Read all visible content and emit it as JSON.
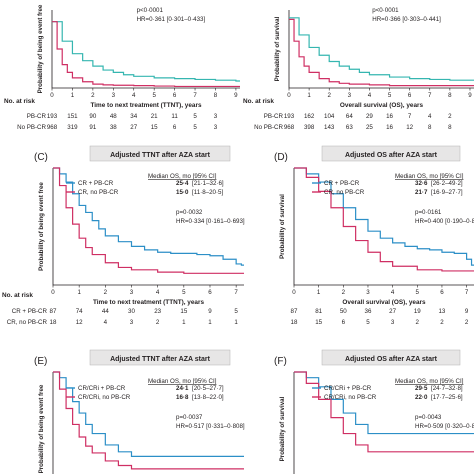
{
  "colors": {
    "blue": "#2c8fc7",
    "teal": "#35b6b0",
    "red": "#cf2f63",
    "ink": "#231f20",
    "header_bg": "#e7e6e6"
  },
  "panels": [
    {
      "id": "A",
      "annotation": [
        "p<0·0001",
        "HR=0·361 [0·301–0·433]"
      ],
      "risk": {
        "title": "No. at risk",
        "rows": [
          {
            "label": "PB-CR",
            "values": [
              "193",
              "151",
              "90",
              "48",
              "34",
              "21",
              "11",
              "5",
              "3"
            ]
          },
          {
            "label": "No PB-CR",
            "values": [
              "968",
              "319",
              "91",
              "38",
              "27",
              "15",
              "6",
              "5",
              "3"
            ]
          }
        ]
      }
    },
    {
      "id": "B",
      "annotation": [
        "p<0·0001",
        "HR=0·366 [0·303–0·441]"
      ],
      "risk": {
        "title": "No. at risk",
        "rows": [
          {
            "label": "PB-CR",
            "values": [
              "193",
              "162",
              "104",
              "64",
              "29",
              "16",
              "7",
              "4",
              "2"
            ]
          },
          {
            "label": "No PB-CR",
            "values": [
              "968",
              "398",
              "143",
              "63",
              "25",
              "16",
              "12",
              "8",
              "8"
            ]
          }
        ]
      }
    },
    {
      "id": "C",
      "letter": "(C)",
      "header": "Adjusted TTNT after AZA start",
      "median_header": "Median OS, mo [95% CI]",
      "legend": [
        {
          "label": "CR + PB-CR",
          "value": "25·4",
          "ci": "[21·1–32·6]",
          "color": "#2c8fc7"
        },
        {
          "label": "CR, no PB-CR",
          "value": "15·0",
          "ci": "[11·8–20·5]",
          "color": "#cf2f63"
        }
      ],
      "annotation": [
        "p=0·0032",
        "HR=0·334 [0·161–0·693]"
      ],
      "risk": {
        "title": "No. at risk",
        "rows": [
          {
            "label": "CR + PB-CR",
            "values": [
              "87",
              "74",
              "44",
              "30",
              "23",
              "15",
              "9",
              "5"
            ]
          },
          {
            "label": "CR, no PB-CR",
            "values": [
              "18",
              "12",
              "4",
              "3",
              "2",
              "1",
              "1",
              "1"
            ]
          }
        ]
      }
    },
    {
      "id": "D",
      "letter": "(D)",
      "header": "Adjusted OS after AZA start",
      "median_header": "Median OS, mo [95% CI]",
      "legend": [
        {
          "label": "CR + PB-CR",
          "value": "32·6",
          "ci": "[26·2–49·2]",
          "color": "#2c8fc7"
        },
        {
          "label": "CR, no PB-CR",
          "value": "21·7",
          "ci": "[16·9–27·7]",
          "color": "#cf2f63"
        }
      ],
      "annotation": [
        "p=0·0161",
        "HR=0·400 [0·190–0·844]"
      ],
      "risk": {
        "title": "",
        "rows": [
          {
            "label": "",
            "values": [
              "87",
              "81",
              "50",
              "36",
              "27",
              "19",
              "13",
              "9"
            ]
          },
          {
            "label": "",
            "values": [
              "18",
              "15",
              "6",
              "5",
              "3",
              "2",
              "2",
              "2"
            ]
          }
        ]
      }
    },
    {
      "id": "E",
      "letter": "(E)",
      "header": "Adjusted TTNT after AZA start",
      "median_header": "Median OS, mo [95% CI]",
      "legend": [
        {
          "label": "CR/CRi + PB-CR",
          "value": "24·1",
          "ci": "[20·5–27·7]",
          "color": "#2c8fc7"
        },
        {
          "label": "CR/CRi, no PB-CR",
          "value": "16·8",
          "ci": "[13·8–22·0]",
          "color": "#cf2f63"
        }
      ],
      "annotation": [
        "p=0·0037",
        "HR=0·517 [0·331–0·808]"
      ]
    },
    {
      "id": "F",
      "letter": "(F)",
      "header": "Adjusted OS after AZA start",
      "median_header": "Median OS, mo [95% CI]",
      "legend": [
        {
          "label": "CR/CRi + PB-CR",
          "value": "29·5",
          "ci": "[24·7–32·8]",
          "color": "#2c8fc7"
        },
        {
          "label": "CR/CRi, no PB-CR",
          "value": "22·0",
          "ci": "[17·7–25·6]",
          "color": "#cf2f63"
        }
      ],
      "annotation": [
        "p=0·0043",
        "HR=0·509 [0·320–0·810]"
      ]
    }
  ],
  "chart_data": [
    {
      "id": "A",
      "type": "line",
      "xlabel": "Time to next treatment (TTNT), years",
      "ylabel": "Probability of being event free",
      "x_ticks": [
        0,
        1,
        2,
        3,
        4,
        5,
        6,
        7,
        8,
        9
      ],
      "y_ticks": [],
      "xlim": [
        0,
        9.2
      ],
      "ylim": [
        0,
        1
      ],
      "series": [
        {
          "color": "#35b6b0",
          "x": [
            0,
            0.5,
            1,
            1.5,
            2,
            2.5,
            3,
            3.5,
            4,
            5,
            6,
            7,
            8,
            9
          ],
          "y": [
            0.85,
            0.6,
            0.44,
            0.35,
            0.28,
            0.23,
            0.2,
            0.17,
            0.15,
            0.13,
            0.12,
            0.11,
            0.1,
            0.09
          ]
        },
        {
          "color": "#cf2f63",
          "x": [
            0,
            0.25,
            0.5,
            0.75,
            1,
            1.5,
            2,
            2.5,
            3,
            4,
            5,
            6,
            7,
            8,
            9
          ],
          "y": [
            0.85,
            0.5,
            0.3,
            0.2,
            0.13,
            0.08,
            0.05,
            0.04,
            0.035,
            0.03,
            0.025,
            0.02,
            0.02,
            0.02,
            0.02
          ]
        }
      ]
    },
    {
      "id": "B",
      "type": "line",
      "xlabel": "Overall survival (OS), years",
      "ylabel": "Probability of survival",
      "x_ticks": [
        0,
        1,
        2,
        3,
        4,
        5,
        6,
        7,
        8,
        9
      ],
      "y_ticks": [],
      "xlim": [
        0,
        9.2
      ],
      "ylim": [
        0,
        1
      ],
      "series": [
        {
          "color": "#35b6b0",
          "x": [
            0,
            0.5,
            1,
            1.5,
            2,
            2.5,
            3,
            3.5,
            4,
            5,
            6,
            7,
            8,
            9
          ],
          "y": [
            0.9,
            0.68,
            0.52,
            0.42,
            0.34,
            0.28,
            0.24,
            0.2,
            0.17,
            0.14,
            0.12,
            0.11,
            0.1,
            0.1
          ]
        },
        {
          "color": "#cf2f63",
          "x": [
            0,
            0.25,
            0.5,
            0.75,
            1,
            1.5,
            2,
            2.5,
            3,
            4,
            5,
            6,
            7,
            8,
            9
          ],
          "y": [
            0.88,
            0.6,
            0.4,
            0.28,
            0.2,
            0.12,
            0.08,
            0.06,
            0.05,
            0.04,
            0.03,
            0.03,
            0.03,
            0.03,
            0.03
          ]
        }
      ]
    },
    {
      "id": "C",
      "type": "line",
      "xlabel": "Time to next treatment (TTNT), years",
      "ylabel": "Probability of being event free",
      "x_ticks": [
        0,
        1,
        2,
        3,
        4,
        5,
        6,
        7
      ],
      "y_ticks": [],
      "xlim": [
        0,
        7.3
      ],
      "ylim": [
        0,
        1
      ],
      "series": [
        {
          "name": "CR + PB-CR",
          "color": "#2c8fc7",
          "x": [
            0,
            0.25,
            0.5,
            0.75,
            1,
            1.25,
            1.5,
            1.75,
            2,
            2.5,
            3,
            3.5,
            4,
            4.5,
            5,
            5.5,
            6,
            6.5,
            7,
            7.2
          ],
          "y": [
            1,
            0.95,
            0.88,
            0.78,
            0.68,
            0.62,
            0.55,
            0.48,
            0.42,
            0.37,
            0.33,
            0.3,
            0.28,
            0.27,
            0.27,
            0.26,
            0.25,
            0.22,
            0.18,
            0.17
          ]
        },
        {
          "name": "CR, no PB-CR",
          "color": "#cf2f63",
          "x": [
            0,
            0.25,
            0.5,
            0.75,
            1,
            1.25,
            1.5,
            2,
            2.5,
            3,
            4,
            5,
            6,
            7
          ],
          "y": [
            1,
            0.85,
            0.66,
            0.52,
            0.4,
            0.32,
            0.26,
            0.19,
            0.15,
            0.13,
            0.11,
            0.1,
            0.1,
            0.1
          ]
        }
      ]
    },
    {
      "id": "D",
      "type": "line",
      "xlabel": "Overall survival (OS), years",
      "ylabel": "Probability of survival",
      "x_ticks": [
        0,
        1,
        2,
        3,
        4,
        5,
        6,
        7
      ],
      "y_ticks": [],
      "xlim": [
        0,
        7.3
      ],
      "ylim": [
        0,
        1
      ],
      "series": [
        {
          "name": "CR + PB-CR",
          "color": "#2c8fc7",
          "x": [
            0,
            0.5,
            1,
            1.5,
            2,
            2.5,
            3,
            3.5,
            4,
            4.5,
            5,
            5.5,
            6,
            6.5,
            7,
            7.2
          ],
          "y": [
            1,
            0.95,
            0.88,
            0.78,
            0.66,
            0.56,
            0.46,
            0.4,
            0.36,
            0.33,
            0.31,
            0.3,
            0.28,
            0.27,
            0.22,
            0.17
          ]
        },
        {
          "name": "CR, no PB-CR",
          "color": "#cf2f63",
          "x": [
            0,
            0.5,
            1,
            1.5,
            2,
            2.5,
            3,
            3.5,
            4,
            5,
            6,
            7
          ],
          "y": [
            1,
            0.92,
            0.8,
            0.66,
            0.5,
            0.38,
            0.28,
            0.2,
            0.16,
            0.13,
            0.12,
            0.12
          ]
        }
      ]
    },
    {
      "id": "E",
      "type": "line",
      "xlabel": "",
      "ylabel": "Probability of being event free",
      "x_ticks": [],
      "y_ticks": [],
      "xlim": [
        0,
        7.3
      ],
      "ylim": [
        0,
        1
      ],
      "series": [
        {
          "name": "CR/CRi + PB-CR",
          "color": "#2c8fc7",
          "x": [
            0,
            0.25,
            0.5,
            0.75,
            1,
            1.25,
            1.5,
            2,
            2.5,
            3
          ],
          "y": [
            1,
            0.95,
            0.86,
            0.74,
            0.64,
            0.54,
            0.46,
            0.36,
            0.3,
            0.26
          ]
        },
        {
          "name": "CR/CRi, no PB-CR",
          "color": "#cf2f63",
          "x": [
            0,
            0.25,
            0.5,
            0.75,
            1,
            1.25,
            1.5,
            2,
            2.5,
            3
          ],
          "y": [
            1,
            0.85,
            0.68,
            0.54,
            0.43,
            0.35,
            0.29,
            0.22,
            0.18,
            0.15
          ]
        }
      ]
    },
    {
      "id": "F",
      "type": "line",
      "xlabel": "",
      "ylabel": "Probability of survival",
      "x_ticks": [],
      "y_ticks": [],
      "xlim": [
        0,
        7.3
      ],
      "ylim": [
        0,
        1
      ],
      "series": [
        {
          "name": "CR/CRi + PB-CR",
          "color": "#2c8fc7",
          "x": [
            0,
            0.5,
            1,
            1.5,
            2,
            2.5,
            3
          ],
          "y": [
            1,
            0.95,
            0.87,
            0.76,
            0.64,
            0.54,
            0.46
          ]
        },
        {
          "name": "CR/CRi, no PB-CR",
          "color": "#cf2f63",
          "x": [
            0,
            0.5,
            1,
            1.5,
            2,
            2.5,
            3
          ],
          "y": [
            1,
            0.9,
            0.76,
            0.6,
            0.46,
            0.36,
            0.3
          ]
        }
      ]
    }
  ]
}
